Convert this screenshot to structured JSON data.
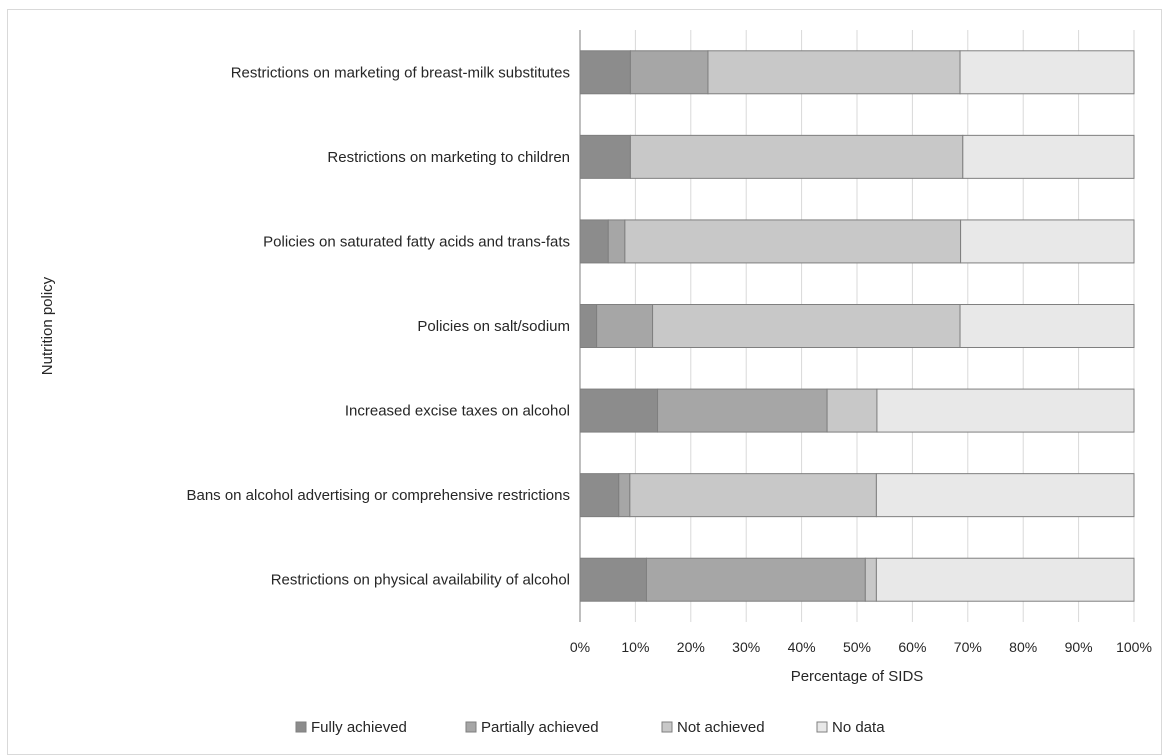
{
  "chart_data": {
    "type": "bar",
    "orientation": "horizontal",
    "stacked": "percent",
    "categories": [
      "Restrictions on marketing of breast-milk substitutes",
      "Restrictions on marketing to children",
      "Policies on saturated fatty acids and trans-fats",
      "Policies on salt/sodium",
      "Increased excise taxes on alcohol",
      "Bans on alcohol advertising  or comprehensive restrictions",
      "Restrictions on physical availability of alcohol"
    ],
    "series": [
      {
        "name": "Fully achieved",
        "color": "#8c8c8c",
        "values": [
          9.1,
          9.1,
          5.1,
          3.0,
          14.0,
          7.0,
          12.0
        ]
      },
      {
        "name": "Partially achieved",
        "color": "#a6a6a6",
        "values": [
          14.0,
          0.0,
          3.0,
          10.1,
          30.6,
          2.0,
          39.5
        ]
      },
      {
        "name": "Not achieved",
        "color": "#c8c8c8",
        "values": [
          45.5,
          60.0,
          60.6,
          55.5,
          9.0,
          44.5,
          2.0
        ]
      },
      {
        "name": "No data",
        "color": "#e8e8e8",
        "values": [
          31.4,
          30.9,
          31.3,
          31.4,
          46.4,
          46.5,
          46.5
        ]
      }
    ],
    "xticks": [
      "0%",
      "10%",
      "20%",
      "30%",
      "40%",
      "50%",
      "60%",
      "70%",
      "80%",
      "90%",
      "100%"
    ],
    "xlim": [
      0,
      100
    ],
    "xlabel": "Percentage of SIDS",
    "ylabel": "Nutrition policy",
    "grid": true,
    "legend_position": "bottom"
  }
}
